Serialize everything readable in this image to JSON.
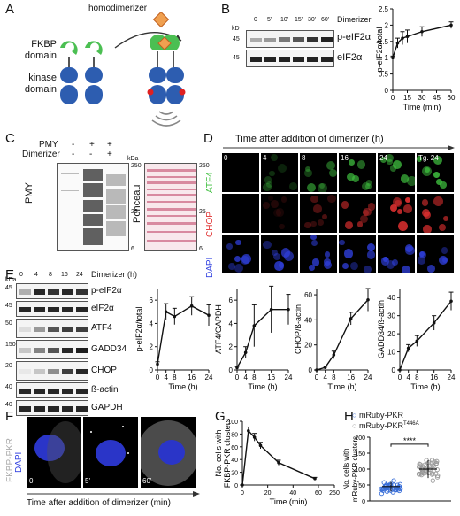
{
  "panels": {
    "A": "A",
    "B": "B",
    "C": "C",
    "D": "D",
    "E": "E",
    "F": "F",
    "G": "G",
    "H": "H"
  },
  "panelA": {
    "homodimerizer": "homodimerizer",
    "fkbp": "FKBP\ndomain",
    "kinase": "kinase\ndomain"
  },
  "panelB": {
    "kd": "kD",
    "m45a": "45",
    "m45b": "45",
    "times": [
      "0",
      "5'",
      "10'",
      "15'",
      "30'",
      "60'"
    ],
    "dimerizer": "Dimerizer",
    "rows": [
      "p-eIF2α",
      "eIF2α"
    ]
  },
  "panelC": {
    "pmy": "PMY",
    "dimerizer": "Dimerizer",
    "pmy_signs": [
      "-",
      "+",
      "+"
    ],
    "dim_signs": [
      "-",
      "-",
      "+"
    ],
    "kda": "kDa",
    "markers": [
      "250",
      "25",
      "6"
    ],
    "left_label": "PMY",
    "right_label": "Ponceau"
  },
  "panelD": {
    "title": "Time after addition of dimerizer (h)",
    "cols": [
      "0",
      "4",
      "8",
      "16",
      "24",
      "Tg. 24"
    ],
    "rows": [
      "ATF4",
      "CHOP",
      "DAPI"
    ],
    "colors": {
      "ATF4": "#3fbf3f",
      "CHOP": "#e03030",
      "DAPI": "#3040e0"
    }
  },
  "panelE": {
    "times": [
      "0",
      "4",
      "8",
      "16",
      "24"
    ],
    "dimerizer": "Dimerizer (h)",
    "kda": "kDa",
    "markers": [
      "45",
      "45",
      "50",
      "150",
      "20",
      "40",
      "40"
    ],
    "rows": [
      "p-eIF2α",
      "eIF2α",
      "ATF4",
      "GADD34",
      "CHOP",
      "ß-actin",
      "GAPDH"
    ]
  },
  "panelF": {
    "label": "FKBP-PKR",
    "dapi": "DAPI",
    "tiles": [
      "0",
      "5'",
      "60'"
    ],
    "xlabel": "Time after addition of dimerizer (min)"
  },
  "panelG": {
    "ylabel": "No. cells with\nFKBP-PKR clusters",
    "xlabel": "Time (min)"
  },
  "panelH": {
    "legend": [
      "mRuby-PKR",
      "mRuby-PKR"
    ],
    "legend_sup": "T446A",
    "ylabel": "No. cells with\nmRuby-PKR clusters",
    "sig": "****",
    "colors": [
      "#3a6fd8",
      "#999999"
    ]
  },
  "chart_data": [
    {
      "id": "B",
      "type": "line",
      "x": [
        0,
        5,
        10,
        15,
        30,
        60
      ],
      "y": [
        1.0,
        1.45,
        1.6,
        1.65,
        1.8,
        2.0
      ],
      "err": [
        0.05,
        0.15,
        0.2,
        0.2,
        0.15,
        0.1
      ],
      "xlabel": "Time (min)",
      "ylabel": "p-eIF2α/total",
      "xticks": [
        0,
        15,
        30,
        45,
        60
      ],
      "yticks": [
        0.0,
        0.5,
        1.0,
        1.5,
        2.0,
        2.5
      ],
      "ylim": [
        0,
        2.5
      ]
    },
    {
      "id": "E1",
      "type": "line",
      "x": [
        0,
        4,
        8,
        16,
        24
      ],
      "y": [
        0.5,
        5.0,
        4.6,
        5.5,
        4.7
      ],
      "err": [
        0.2,
        0.7,
        0.7,
        0.8,
        0.9
      ],
      "xlabel": "Time (h)",
      "ylabel": "p-eIF2α/total",
      "xticks": [
        0,
        4,
        8,
        16,
        24
      ],
      "yticks": [
        0,
        2,
        4,
        6
      ],
      "ylim": [
        0,
        7
      ]
    },
    {
      "id": "E2",
      "type": "line",
      "x": [
        0,
        4,
        8,
        16,
        24
      ],
      "y": [
        0.2,
        1.5,
        3.8,
        5.2,
        5.2
      ],
      "err": [
        0.1,
        0.5,
        1.8,
        2.0,
        1.3
      ],
      "xlabel": "Time (h)",
      "ylabel": "ATF4/GAPDH",
      "xticks": [
        0,
        4,
        8,
        16,
        24
      ],
      "yticks": [
        0,
        2,
        4,
        6
      ],
      "ylim": [
        0,
        7
      ]
    },
    {
      "id": "E3",
      "type": "line",
      "x": [
        0,
        4,
        8,
        16,
        24
      ],
      "y": [
        0,
        2,
        12,
        41,
        56
      ],
      "err": [
        0,
        1,
        3,
        5,
        9
      ],
      "xlabel": "Time (h)",
      "ylabel": "CHOP/ß-actin",
      "xticks": [
        0,
        4,
        8,
        16,
        24
      ],
      "yticks": [
        0,
        20,
        40,
        60
      ],
      "ylim": [
        0,
        65
      ]
    },
    {
      "id": "E4",
      "type": "line",
      "x": [
        0,
        4,
        8,
        16,
        24
      ],
      "y": [
        0,
        12,
        16,
        26,
        38
      ],
      "err": [
        0,
        2,
        3,
        4,
        5
      ],
      "xlabel": "Time (h)",
      "ylabel": "GADD34/ß-actin",
      "xticks": [
        0,
        4,
        8,
        16,
        24
      ],
      "yticks": [
        0,
        10,
        20,
        30,
        40
      ],
      "ylim": [
        0,
        45
      ]
    },
    {
      "id": "G",
      "type": "line",
      "x": [
        0,
        5,
        10,
        15,
        30,
        60
      ],
      "y": [
        0,
        85,
        75,
        62,
        35,
        10
      ],
      "err": [
        0,
        6,
        6,
        5,
        4,
        2
      ],
      "xlabel": "Time (min)",
      "ylabel": "No. cells with FKBP-PKR clusters",
      "xticks": [
        0,
        20,
        40,
        60,
        250
      ],
      "yticks": [
        0,
        20,
        40,
        60,
        80,
        100
      ],
      "ylim": [
        0,
        100
      ]
    },
    {
      "id": "H",
      "type": "scatter",
      "yticks": [
        0,
        50,
        100,
        150,
        200
      ],
      "ylim": [
        0,
        200
      ],
      "series": [
        {
          "name": "mRuby-PKR",
          "mean": 45,
          "sd": 15,
          "n": 40
        },
        {
          "name": "mRuby-PKR T446A",
          "mean": 100,
          "sd": 28,
          "n": 40
        }
      ],
      "annotation": "****"
    }
  ]
}
